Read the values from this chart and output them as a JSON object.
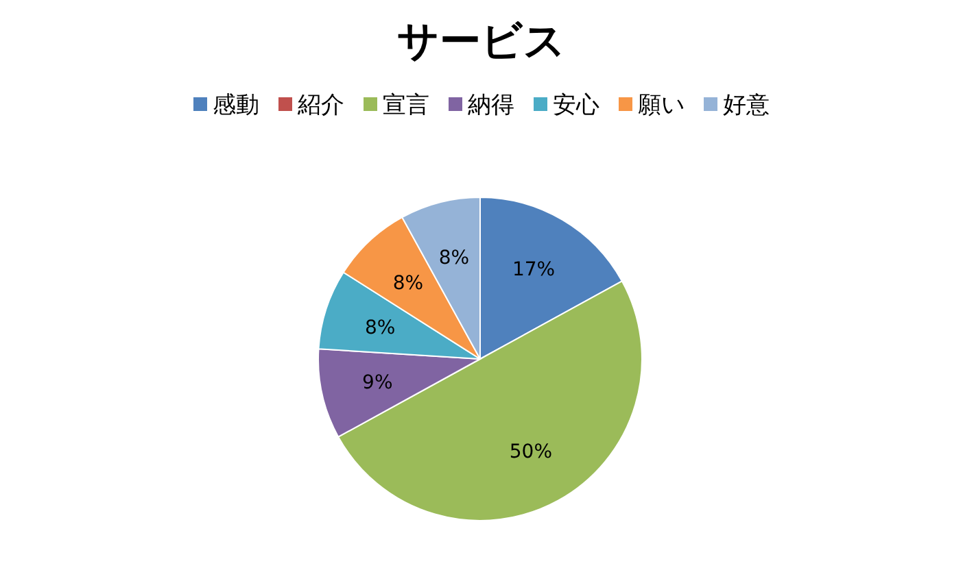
{
  "chart_data": {
    "type": "pie",
    "title": "サービス",
    "legend": "top",
    "categories": [
      "感動",
      "紹介",
      "宣言",
      "納得",
      "安心",
      "願い",
      "好意"
    ],
    "values": [
      17,
      0,
      50,
      9,
      8,
      8,
      8
    ],
    "colors": [
      "#4f81bd",
      "#c0504d",
      "#9bbb59",
      "#8064a2",
      "#4bacc6",
      "#f79646",
      "#95b3d7"
    ],
    "value_labels": [
      "17%",
      null,
      "50%",
      "9%",
      "8%",
      "8%",
      "8%"
    ]
  }
}
